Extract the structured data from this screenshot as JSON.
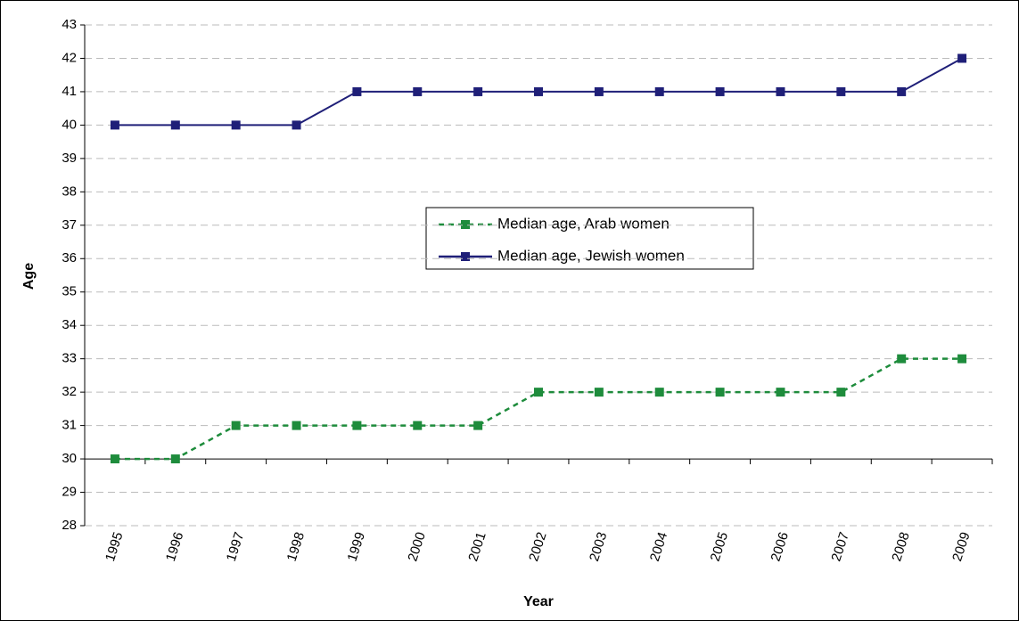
{
  "chart_data": {
    "type": "line",
    "x_label": "Year",
    "y_label": "Age",
    "categories": [
      "1995",
      "1996",
      "1997",
      "1998",
      "1999",
      "2000",
      "2001",
      "2002",
      "2003",
      "2004",
      "2005",
      "2006",
      "2007",
      "2008",
      "2009"
    ],
    "series": [
      {
        "name": "Median age, Arab women",
        "color": "#1e8c3c",
        "dashed": true,
        "values": [
          30,
          30,
          31,
          31,
          31,
          31,
          31,
          32,
          32,
          32,
          32,
          32,
          32,
          33,
          33
        ]
      },
      {
        "name": "Median age, Jewish women",
        "color": "#1f1f78",
        "dashed": false,
        "values": [
          40,
          40,
          40,
          40,
          41,
          41,
          41,
          41,
          41,
          41,
          41,
          41,
          41,
          41,
          42
        ]
      }
    ],
    "ylim": [
      28,
      43
    ],
    "yticks": [
      28,
      29,
      30,
      31,
      32,
      33,
      34,
      35,
      36,
      37,
      38,
      39,
      40,
      41,
      42,
      43
    ],
    "x_axis_crosses": 30,
    "grid": true,
    "legend": "center"
  }
}
